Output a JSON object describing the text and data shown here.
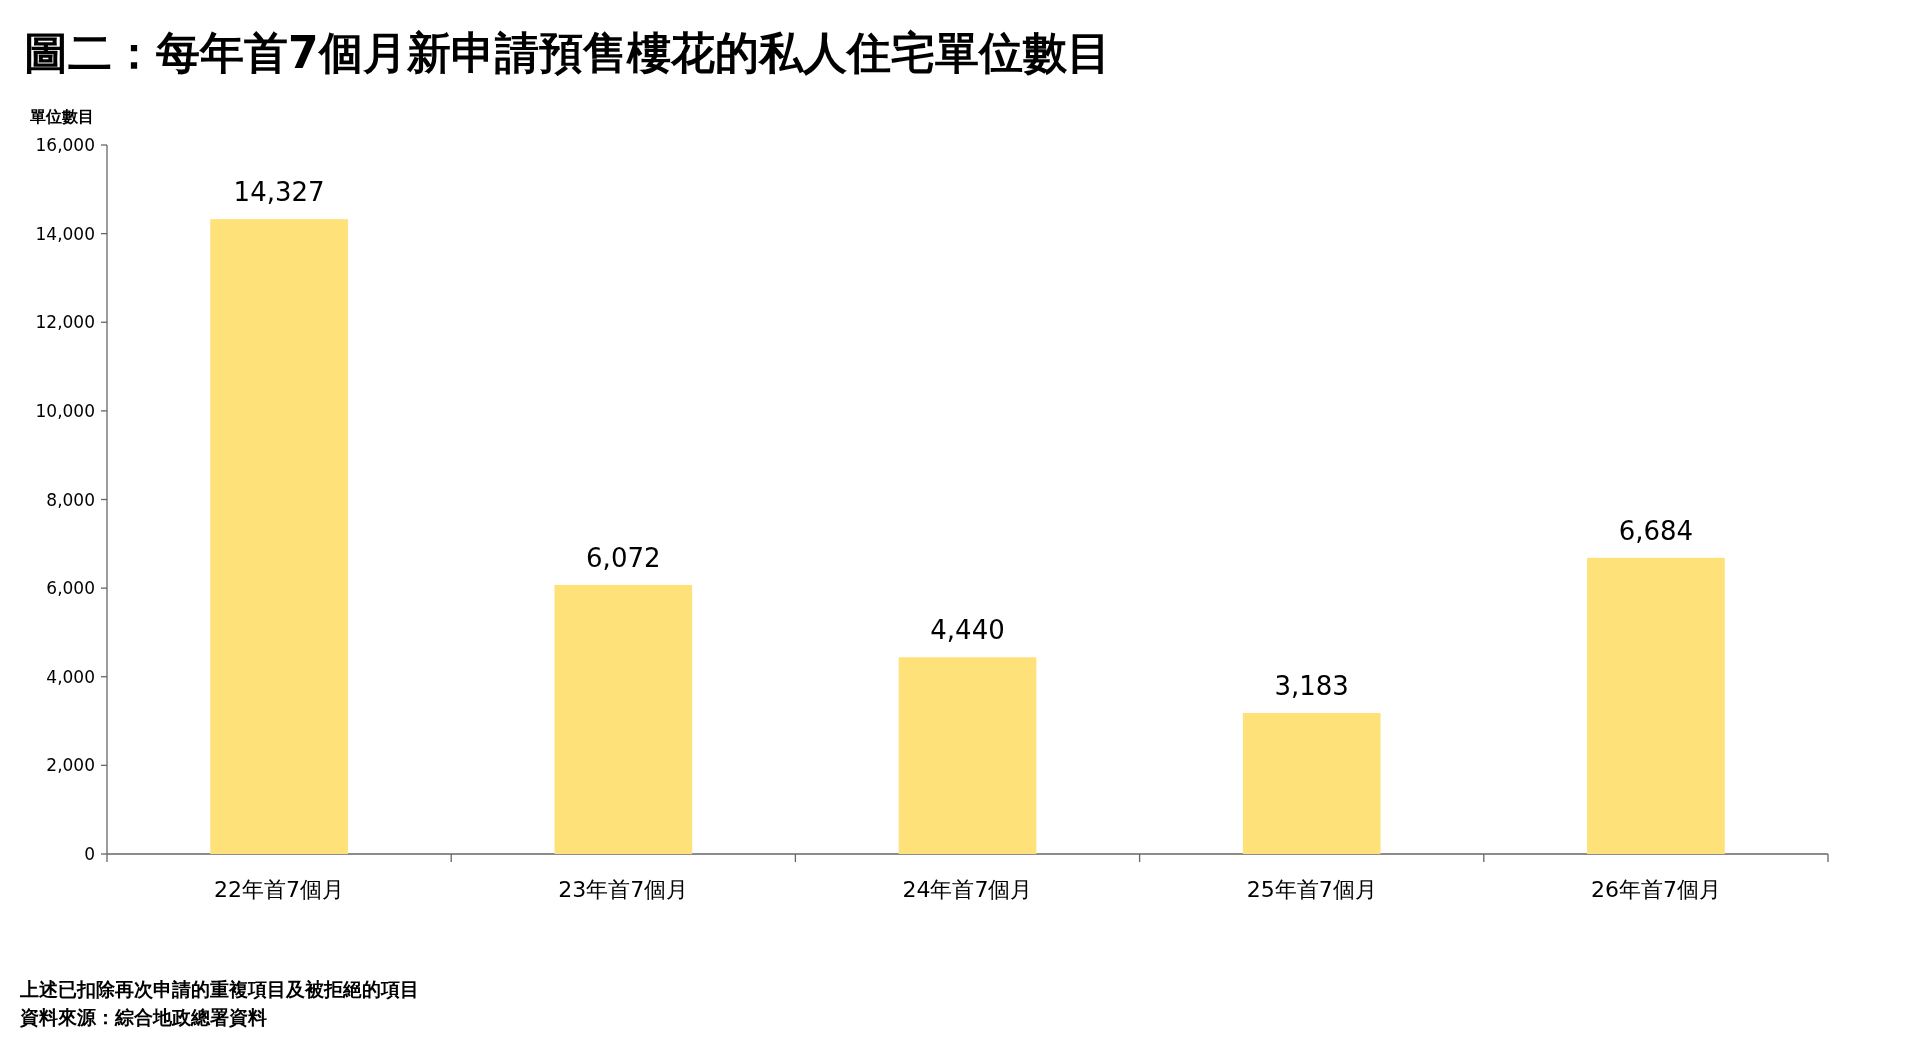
{
  "chart_data": {
    "type": "bar",
    "title": "圖二：每年首7個月新申請預售樓花的私人住宅單位數目",
    "ylabel": "單位數目",
    "categories": [
      "22年首7個月",
      "23年首7個月",
      "24年首7個月",
      "25年首7個月",
      "26年首7個月"
    ],
    "values": [
      14327,
      6072,
      4440,
      3183,
      6684
    ],
    "value_labels": [
      "14,327",
      "6,072",
      "4,440",
      "3,183",
      "6,684"
    ],
    "color": "#ffe17a",
    "ylim": [
      0,
      16000
    ],
    "yticks": [
      0,
      {
        "value": 2000,
        "label": "2,000"
      },
      {
        "value": 4000,
        "label": "4,000"
      },
      {
        "value": 6000,
        "label": "6,000"
      },
      {
        "value": 8000,
        "label": "8,000"
      },
      {
        "value": 10000,
        "label": "10,000"
      },
      {
        "value": 12000,
        "label": "12,000"
      },
      {
        "value": 14000,
        "label": "14,000"
      },
      {
        "value": 16000,
        "label": "16,000"
      }
    ],
    "grid": false,
    "annotations": [
      "上述已扣除再次申請的重複項目及被拒絕的項目",
      "資料來源：綜合地政總署資料"
    ]
  }
}
